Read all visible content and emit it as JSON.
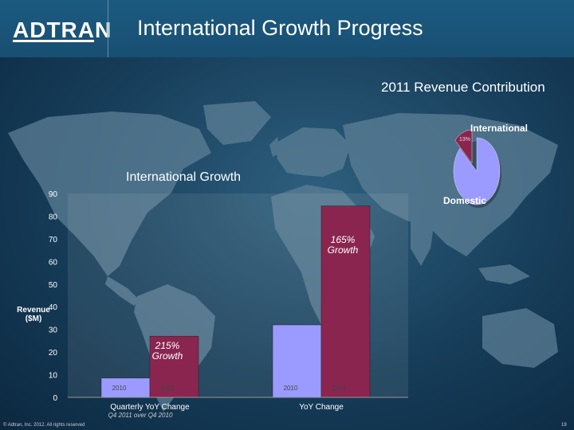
{
  "header": {
    "logo_text": "ADTRAN",
    "title": "International Growth Progress"
  },
  "pie": {
    "title": "2011 Revenue Contribution",
    "slices": [
      {
        "label": "International",
        "value_label": "13%",
        "value": 13,
        "color": "#8a2550"
      },
      {
        "label": "Domestic",
        "value_label": "",
        "value": 87,
        "color": "#9b9bff"
      }
    ]
  },
  "chart_data": {
    "type": "bar",
    "title": "International Growth",
    "ylabel": "Revenue ($M)",
    "ylim": [
      0,
      90
    ],
    "yticks": [
      0,
      10,
      20,
      30,
      40,
      50,
      60,
      70,
      80,
      90
    ],
    "groups": [
      {
        "label": "Quarterly YoY Change",
        "sublabel": "Q4 2011 over Q4 2010",
        "growth_label": "215% Growth",
        "bars": [
          {
            "year": "2010",
            "value": 8.5,
            "color": "#9b9bff"
          },
          {
            "year": "2011",
            "value": 27,
            "color": "#8a2550"
          }
        ]
      },
      {
        "label": "YoY Change",
        "sublabel": "",
        "growth_label": "165% Growth",
        "bars": [
          {
            "year": "2010",
            "value": 32,
            "color": "#9b9bff"
          },
          {
            "year": "2011",
            "value": 84.5,
            "color": "#8a2550"
          }
        ]
      }
    ]
  },
  "footer": {
    "copyright": "© Adtran, Inc. 2012. All rights reserved",
    "page_number": "19"
  }
}
